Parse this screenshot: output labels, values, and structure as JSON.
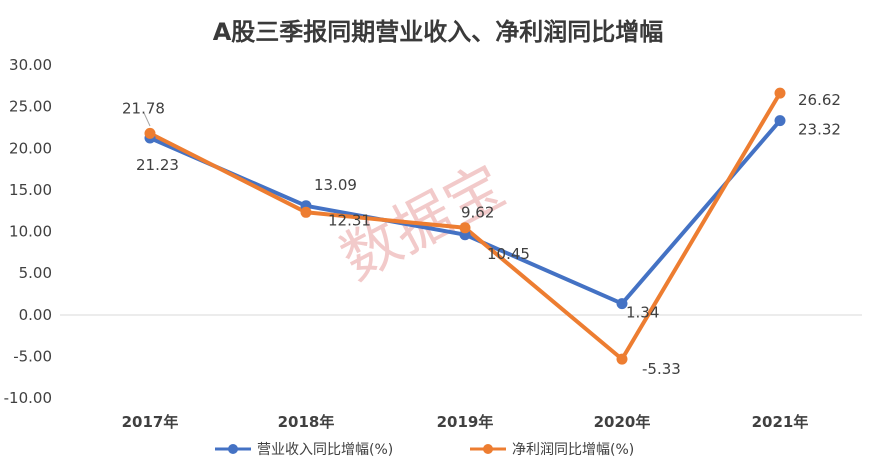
{
  "chart_data": {
    "type": "line",
    "title": "A股三季报同期营业收入、净利润同比增幅",
    "categories": [
      "2017年",
      "2018年",
      "2019年",
      "2020年",
      "2021年"
    ],
    "ylim": [
      -10,
      30
    ],
    "yticks": [
      "30.00",
      "25.00",
      "20.00",
      "15.00",
      "10.00",
      "5.00",
      "0.00",
      "-5.00",
      "-10.00"
    ],
    "ytick_values": [
      30,
      25,
      20,
      15,
      10,
      5,
      0,
      -5,
      -10
    ],
    "grid": false,
    "legend_position": "bottom",
    "series": [
      {
        "name": "营业收入同比增幅(%)",
        "color": "#4472C4",
        "values": [
          21.23,
          13.09,
          9.62,
          1.34,
          23.32
        ],
        "labels": [
          "21.23",
          "13.09",
          "9.62",
          "1.34",
          "23.32"
        ]
      },
      {
        "name": "净利润同比增幅(%)",
        "color": "#ED7D31",
        "values": [
          21.78,
          12.31,
          10.45,
          -5.33,
          26.62
        ],
        "labels": [
          "21.78",
          "12.31",
          "10.45",
          "-5.33",
          "26.62"
        ]
      }
    ]
  },
  "watermark": "数据宝"
}
